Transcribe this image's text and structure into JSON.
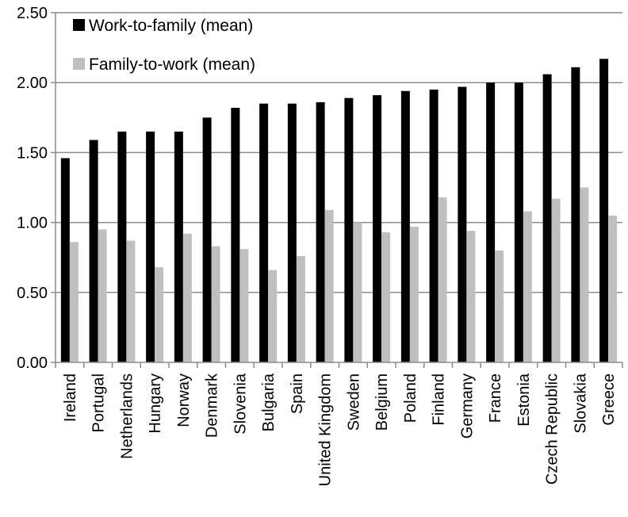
{
  "chart_data": {
    "type": "bar",
    "title": "",
    "xlabel": "",
    "ylabel": "",
    "ylim": [
      0,
      2.5
    ],
    "yticks": [
      "0.00",
      "0.50",
      "1.00",
      "1.50",
      "2.00",
      "2.50"
    ],
    "grid": true,
    "legend_position": "top-left",
    "categories": [
      "Ireland",
      "Portugal",
      "Netherlands",
      "Hungary",
      "Norway",
      "Denmark",
      "Slovenia",
      "Bulgaria",
      "Spain",
      "United Kingdom",
      "Sweden",
      "Belgium",
      "Poland",
      "Finland",
      "Germany",
      "France",
      "Estonia",
      "Czech Republic",
      "Slovakia",
      "Greece"
    ],
    "series": [
      {
        "name": "Work-to-family (mean)",
        "color": "#000000",
        "values": [
          1.46,
          1.59,
          1.65,
          1.65,
          1.65,
          1.75,
          1.82,
          1.85,
          1.85,
          1.86,
          1.89,
          1.91,
          1.94,
          1.95,
          1.97,
          2.0,
          2.0,
          2.06,
          2.11,
          2.17
        ]
      },
      {
        "name": "Family-to-work (mean)",
        "color": "#bfbfbf",
        "values": [
          0.86,
          0.95,
          0.87,
          0.68,
          0.92,
          0.83,
          0.81,
          0.66,
          0.76,
          1.09,
          1.0,
          0.93,
          0.97,
          1.18,
          0.94,
          0.8,
          1.08,
          1.17,
          1.25,
          1.05
        ]
      }
    ]
  }
}
